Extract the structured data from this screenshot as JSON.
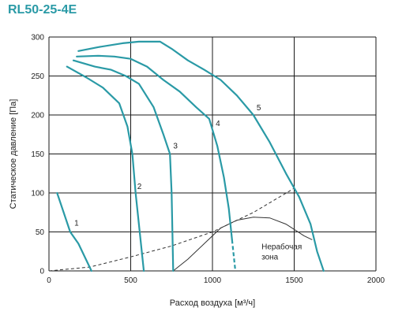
{
  "chart_data": {
    "type": "line",
    "title": "RL50-25-4E",
    "xlabel": "Расход воздуха [м³/ч]",
    "ylabel": "Статическое давление [Па]",
    "xlim": [
      0,
      2000
    ],
    "ylim": [
      0,
      300
    ],
    "x_ticks": [
      0,
      500,
      1000,
      1500,
      2000
    ],
    "y_ticks": [
      0,
      50,
      100,
      150,
      200,
      250,
      300
    ],
    "grid": true,
    "colors": {
      "curve": "#2a9aa6",
      "system": "#333333",
      "title": "#2a9aa6"
    },
    "series": [
      {
        "name": "1",
        "points": [
          [
            50,
            100
          ],
          [
            130,
            50
          ],
          [
            180,
            35
          ],
          [
            260,
            0
          ]
        ]
      },
      {
        "name": "2",
        "points": [
          [
            110,
            262
          ],
          [
            230,
            248
          ],
          [
            330,
            235
          ],
          [
            430,
            215
          ],
          [
            480,
            185
          ],
          [
            510,
            150
          ],
          [
            530,
            100
          ],
          [
            555,
            50
          ],
          [
            580,
            0
          ]
        ]
      },
      {
        "name": "3",
        "points": [
          [
            150,
            270
          ],
          [
            280,
            262
          ],
          [
            380,
            258
          ],
          [
            470,
            250
          ],
          [
            550,
            240
          ],
          [
            640,
            210
          ],
          [
            700,
            175
          ],
          [
            740,
            150
          ],
          [
            750,
            100
          ],
          [
            755,
            50
          ],
          [
            760,
            0
          ]
        ]
      },
      {
        "name": "4",
        "points": [
          [
            170,
            275
          ],
          [
            300,
            276
          ],
          [
            400,
            275
          ],
          [
            500,
            272
          ],
          [
            600,
            262
          ],
          [
            700,
            245
          ],
          [
            800,
            230
          ],
          [
            900,
            210
          ],
          [
            980,
            195
          ],
          [
            1030,
            160
          ],
          [
            1070,
            120
          ],
          [
            1100,
            80
          ],
          [
            1120,
            40
          ]
        ]
      },
      {
        "name": "5",
        "points": [
          [
            180,
            282
          ],
          [
            300,
            287
          ],
          [
            450,
            292
          ],
          [
            550,
            294
          ],
          [
            680,
            294
          ],
          [
            750,
            285
          ],
          [
            850,
            270
          ],
          [
            950,
            258
          ],
          [
            1050,
            245
          ],
          [
            1150,
            225
          ],
          [
            1250,
            200
          ],
          [
            1350,
            165
          ],
          [
            1450,
            125
          ],
          [
            1530,
            95
          ],
          [
            1600,
            60
          ],
          [
            1640,
            25
          ],
          [
            1680,
            0
          ]
        ]
      }
    ],
    "dashed_segments": [
      {
        "series": "4",
        "points": [
          [
            1120,
            40
          ],
          [
            1140,
            0
          ]
        ]
      }
    ],
    "curve_labels": [
      {
        "text": "1",
        "x": 155,
        "y": 58
      },
      {
        "text": "2",
        "x": 540,
        "y": 105
      },
      {
        "text": "3",
        "x": 760,
        "y": 157
      },
      {
        "text": "4",
        "x": 1020,
        "y": 186
      },
      {
        "text": "5",
        "x": 1270,
        "y": 206
      }
    ],
    "system_curve": {
      "style": "dashed",
      "points": [
        [
          0,
          0
        ],
        [
          250,
          5
        ],
        [
          500,
          18
        ],
        [
          750,
          32
        ],
        [
          1000,
          50
        ],
        [
          1250,
          75
        ],
        [
          1500,
          106
        ]
      ]
    },
    "boundary_curve": {
      "style": "solid",
      "points": [
        [
          760,
          0
        ],
        [
          850,
          15
        ],
        [
          950,
          35
        ],
        [
          1050,
          55
        ],
        [
          1150,
          65
        ],
        [
          1250,
          69
        ],
        [
          1350,
          68
        ],
        [
          1450,
          60
        ],
        [
          1560,
          45
        ],
        [
          1610,
          40
        ]
      ]
    },
    "zone_label": {
      "lines": [
        "Нерабочая",
        "зона"
      ],
      "x": 1300,
      "y": 28
    }
  }
}
